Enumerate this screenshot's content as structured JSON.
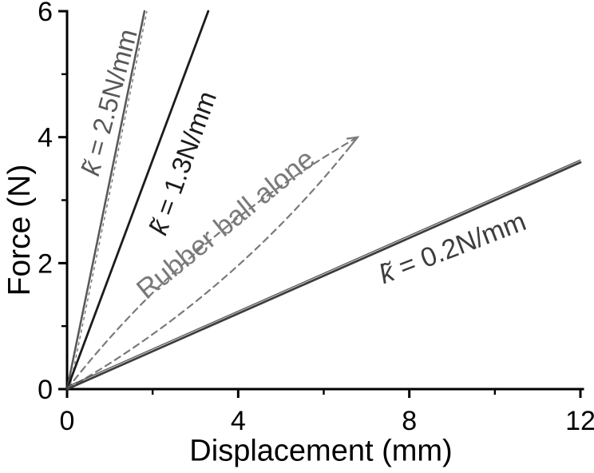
{
  "figure": {
    "background": "#ffffff",
    "type_hint": "force-displacement stiffness curves"
  },
  "chart_data": {
    "type": "line",
    "title": "",
    "xlabel": "Displacement (mm)",
    "ylabel": "Force (N)",
    "xlim": [
      0,
      12
    ],
    "ylim": [
      0,
      6
    ],
    "x_major_ticks": [
      0,
      4,
      8,
      12
    ],
    "x_minor_ticks": [
      2,
      6,
      10
    ],
    "y_major_ticks": [
      0,
      2,
      4,
      6
    ],
    "y_minor_ticks": [
      1,
      3,
      5
    ],
    "grid": false,
    "legend": "inline rotated labels along each curve",
    "axis_color": "#000000",
    "series": [
      {
        "name": "stiffness 2.5 N/mm",
        "label": "k̃ = 2.5N/mm",
        "style": "solid",
        "color": "#595959",
        "width": 2.6,
        "double_trace": true,
        "points": [
          [
            0,
            0
          ],
          [
            1.81,
            6.0
          ]
        ]
      },
      {
        "name": "stiffness 1.3 N/mm",
        "label": "k̃ = 1.3N/mm",
        "style": "solid",
        "color": "#1c1c1c",
        "width": 2.8,
        "double_trace": false,
        "points": [
          [
            0,
            0
          ],
          [
            3.3,
            6.0
          ]
        ]
      },
      {
        "name": "rubber ball alone (loading)",
        "label": "Rubber ball alone",
        "style": "dashed",
        "color": "#7a7a7a",
        "width": 2.2,
        "double_trace": false,
        "points": [
          [
            0,
            0
          ],
          [
            3.1,
            2.22
          ],
          [
            6.79,
            4.0
          ]
        ]
      },
      {
        "name": "rubber ball alone (unloading)",
        "label": "Rubber ball alone",
        "style": "dashed",
        "color": "#7a7a7a",
        "width": 2.2,
        "double_trace": false,
        "points": [
          [
            0,
            0
          ],
          [
            3.66,
            1.76
          ],
          [
            6.79,
            4.0
          ]
        ]
      },
      {
        "name": "stiffness 0.2 N/mm",
        "label": "k̃ = 0.2N/mm",
        "style": "solid",
        "color": "#3d3d3d",
        "width": 2.8,
        "double_trace": true,
        "points": [
          [
            0,
            0
          ],
          [
            12.0,
            3.6
          ]
        ]
      }
    ],
    "annotations": [
      {
        "id": "k25",
        "k": "k̃",
        "rest": " = 2.5N/mm",
        "rotation_deg": -75,
        "color": "#595959",
        "anchor_data": [
          0.99,
          4.55
        ]
      },
      {
        "id": "k13",
        "k": "k̃",
        "rest": " = 1.3N/mm",
        "rotation_deg": -70,
        "color": "#1c1c1c",
        "anchor_data": [
          2.7,
          3.58
        ]
      },
      {
        "id": "rubber",
        "text": "Rubber ball alone",
        "rotation_deg": -39,
        "color": "#7a7a7a",
        "anchor_data": [
          3.71,
          2.61
        ]
      },
      {
        "id": "k02",
        "k": "k̃",
        "rest": " = 0.2N/mm",
        "rotation_deg": -21,
        "color": "#3d3d3d",
        "anchor_data": [
          9.0,
          2.23
        ]
      },
      {
        "id": "arrow",
        "type": "arrowhead",
        "at": [
          6.79,
          4.0
        ],
        "angle_deg": 30,
        "size": 13,
        "color": "#7a7a7a"
      }
    ]
  },
  "axes_titles": {
    "xlabel": "Displacement (mm)",
    "ylabel": "Force (N)"
  }
}
